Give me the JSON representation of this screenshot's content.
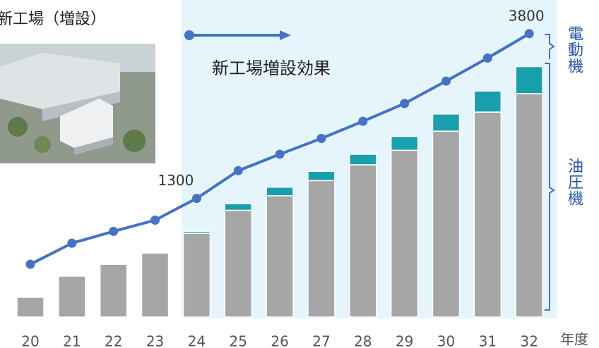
{
  "chart_data": {
    "type": "stacked-bar-line",
    "title": "新工場（増設）",
    "annotation": "新工場増設効果",
    "x_label": "年度",
    "categories": [
      "20",
      "21",
      "22",
      "23",
      "24",
      "25",
      "26",
      "27",
      "28",
      "29",
      "30",
      "31",
      "32"
    ],
    "shaded_from": "24",
    "series": [
      {
        "name": "油圧機",
        "color": "#a6a6a6",
        "values": [
          300,
          620,
          800,
          970,
          1270,
          1620,
          1840,
          2070,
          2310,
          2530,
          2820,
          3110,
          3390
        ]
      },
      {
        "name": "電動機",
        "color": "#1a9fae",
        "values": [
          0,
          0,
          0,
          0,
          30,
          100,
          130,
          140,
          160,
          210,
          260,
          320,
          410
        ]
      }
    ],
    "line": {
      "color": "#4472c4",
      "values": [
        300,
        620,
        800,
        970,
        1300,
        1720,
        1970,
        2210,
        2470,
        2740,
        3080,
        3430,
        3800
      ],
      "value_labels": [
        null,
        null,
        null,
        null,
        "1300",
        null,
        null,
        null,
        null,
        null,
        null,
        null,
        "3800"
      ]
    },
    "ylim": [
      -500,
      4300
    ]
  }
}
